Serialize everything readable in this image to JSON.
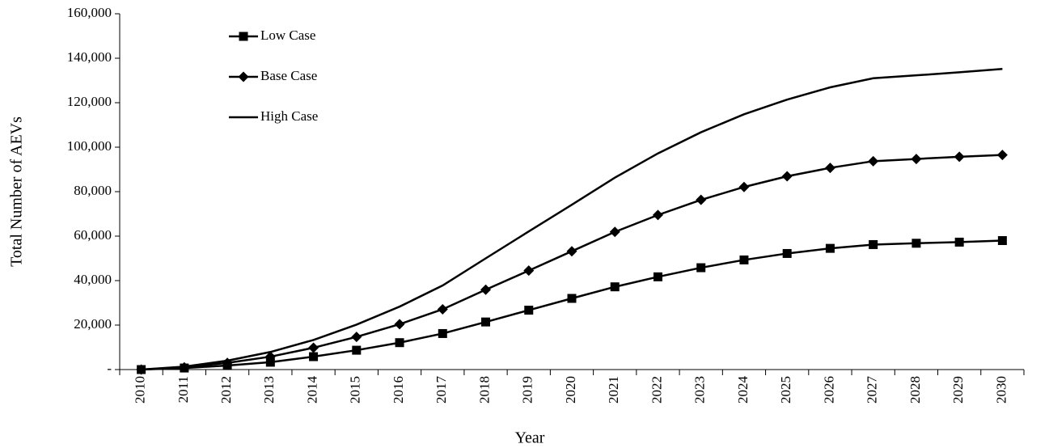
{
  "chart_data": {
    "type": "line",
    "y_label": "Total Number of AEVs",
    "x_label": "Year",
    "categories": [
      "2010",
      "2011",
      "2012",
      "2013",
      "2014",
      "2015",
      "2016",
      "2017",
      "2018",
      "2019",
      "2020",
      "2021",
      "2022",
      "2023",
      "2024",
      "2025",
      "2026",
      "2027",
      "2028",
      "2029",
      "2030"
    ],
    "series": [
      {
        "name": "Low Case",
        "color": "#000000",
        "marker": "square",
        "values": [
          0,
          700,
          1800,
          3300,
          5800,
          8700,
          12100,
          16200,
          21400,
          26700,
          32000,
          37200,
          41700,
          45800,
          49300,
          52200,
          54500,
          56200,
          56800,
          57300,
          58000
        ]
      },
      {
        "name": "Base Case",
        "color": "#000000",
        "marker": "diamond",
        "values": [
          0,
          1000,
          3000,
          5800,
          9800,
          14700,
          20400,
          27100,
          35900,
          44500,
          53200,
          61900,
          69500,
          76300,
          82100,
          86900,
          90700,
          93700,
          94700,
          95700,
          96500
        ]
      },
      {
        "name": "High Case",
        "color": "#000000",
        "marker": "none",
        "values": [
          0,
          1300,
          4000,
          7900,
          13300,
          20200,
          28300,
          37800,
          50000,
          62100,
          74100,
          86300,
          97200,
          106700,
          114800,
          121400,
          126900,
          131000,
          132300,
          133700,
          135200
        ]
      }
    ],
    "ylim": [
      0,
      160000
    ],
    "yticks": [
      {
        "value": 0,
        "label": "-"
      },
      {
        "value": 20000,
        "label": "20,000"
      },
      {
        "value": 40000,
        "label": "40,000"
      },
      {
        "value": 60000,
        "label": "60,000"
      },
      {
        "value": 80000,
        "label": "80,000"
      },
      {
        "value": 100000,
        "label": "100,000"
      },
      {
        "value": 120000,
        "label": "120,000"
      },
      {
        "value": 140000,
        "label": "140,000"
      },
      {
        "value": 160000,
        "label": "160,000"
      }
    ],
    "grid": false,
    "legend": "top-left"
  }
}
